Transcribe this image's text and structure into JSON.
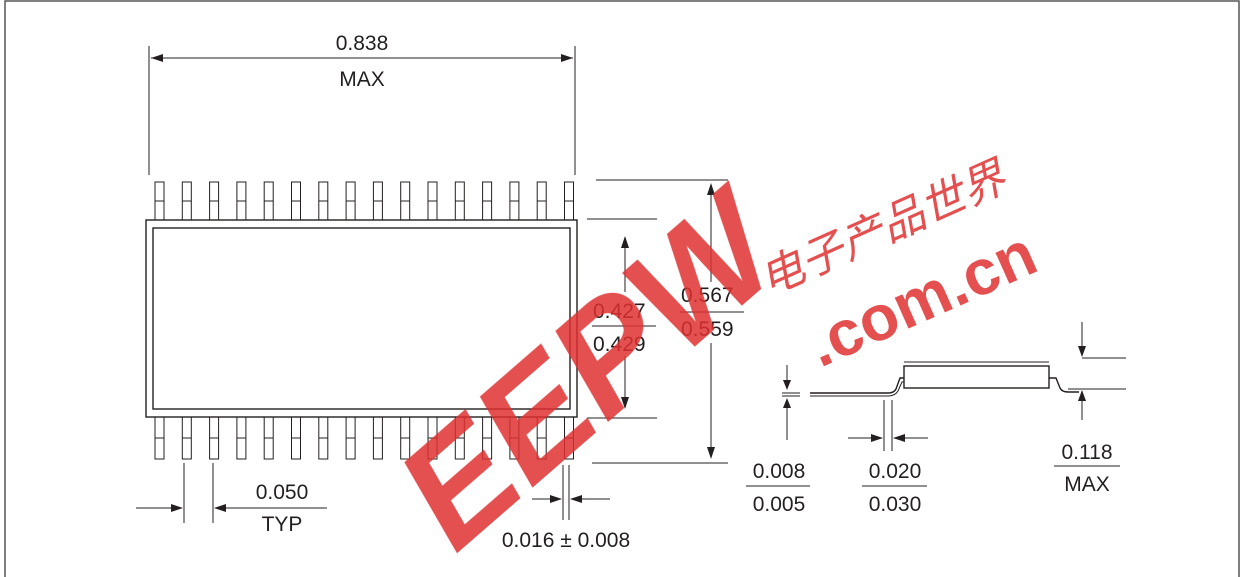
{
  "drawing": {
    "dims": {
      "overall_length": "0.838",
      "overall_length_note": "MAX",
      "body_width_top": "0.427",
      "body_width_bottom": "0.429",
      "total_width_top": "0.567",
      "total_width_bottom": "0.559",
      "lead_thickness_top": "0.008",
      "lead_thickness_bottom": "0.005",
      "lead_pitch": "0.050",
      "lead_pitch_note": "TYP",
      "lead_width": "0.016 ± 0.008",
      "standoff_top": "0.020",
      "standoff_bottom": "0.030",
      "height": "0.118",
      "height_note": "MAX"
    },
    "pin_count_per_side": 16
  },
  "watermark": {
    "logo_text": "EEPW",
    "domain_text": ".com.cn",
    "chinese_text": "电子产品世界",
    "color": "#e03030"
  },
  "colors": {
    "line": "#231f20",
    "frame": "#555555"
  }
}
